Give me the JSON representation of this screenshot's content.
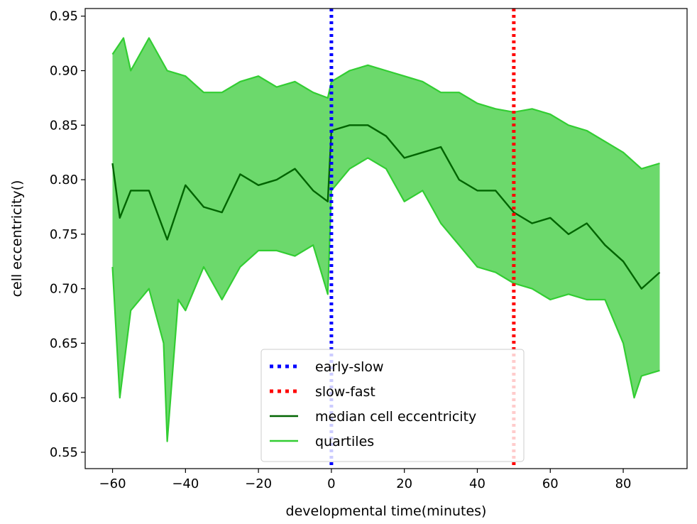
{
  "chart_data": {
    "type": "line",
    "title": "",
    "xlabel": "developmental time(minutes)",
    "ylabel": "cell eccentricity()",
    "xlim": [
      -67.5,
      97.5
    ],
    "ylim": [
      0.535,
      0.957
    ],
    "x_ticks": [
      -60,
      -40,
      -20,
      0,
      20,
      40,
      60,
      80
    ],
    "x_tick_labels": [
      "−60",
      "−40",
      "−20",
      "0",
      "20",
      "40",
      "60",
      "80"
    ],
    "y_ticks": [
      0.55,
      0.6,
      0.65,
      0.7,
      0.75,
      0.8,
      0.85,
      0.9,
      0.95
    ],
    "y_tick_labels": [
      "0.55",
      "0.60",
      "0.65",
      "0.70",
      "0.75",
      "0.80",
      "0.85",
      "0.90",
      "0.95"
    ],
    "grid": false,
    "legend_position": "bottom-center",
    "vertical_lines": [
      {
        "name": "early-slow",
        "x": 0,
        "color": "#0000ff",
        "style": "dotted"
      },
      {
        "name": "slow-fast",
        "x": 50,
        "color": "#ff0000",
        "style": "dotted"
      }
    ],
    "series": [
      {
        "name": "median cell eccentricity",
        "color": "#006400",
        "x": [
          -60,
          -58,
          -55,
          -50,
          -45,
          -40,
          -35,
          -30,
          -25,
          -20,
          -15,
          -10,
          -5,
          -1,
          0,
          5,
          10,
          15,
          20,
          25,
          30,
          35,
          40,
          45,
          50,
          55,
          60,
          65,
          70,
          75,
          80,
          85,
          90
        ],
        "y": [
          0.815,
          0.765,
          0.79,
          0.79,
          0.745,
          0.795,
          0.775,
          0.77,
          0.805,
          0.795,
          0.8,
          0.81,
          0.79,
          0.78,
          0.845,
          0.85,
          0.85,
          0.84,
          0.82,
          0.825,
          0.83,
          0.8,
          0.79,
          0.79,
          0.77,
          0.76,
          0.765,
          0.75,
          0.76,
          0.74,
          0.725,
          0.7,
          0.715
        ]
      },
      {
        "name": "quartiles",
        "role": "upper",
        "color": "#32cd32",
        "x": [
          -60,
          -57,
          -55,
          -50,
          -45,
          -40,
          -35,
          -30,
          -25,
          -20,
          -15,
          -10,
          -5,
          -1,
          0,
          5,
          10,
          15,
          20,
          25,
          30,
          35,
          40,
          45,
          50,
          55,
          60,
          65,
          70,
          75,
          80,
          85,
          90
        ],
        "y": [
          0.915,
          0.93,
          0.9,
          0.93,
          0.9,
          0.895,
          0.88,
          0.88,
          0.89,
          0.895,
          0.885,
          0.89,
          0.88,
          0.875,
          0.89,
          0.9,
          0.905,
          0.9,
          0.895,
          0.89,
          0.88,
          0.88,
          0.87,
          0.865,
          0.862,
          0.865,
          0.86,
          0.85,
          0.845,
          0.835,
          0.825,
          0.81,
          0.815
        ]
      },
      {
        "name": "quartiles",
        "role": "lower",
        "color": "#32cd32",
        "x": [
          -60,
          -58,
          -55,
          -50,
          -46,
          -45,
          -42,
          -40,
          -35,
          -30,
          -25,
          -20,
          -15,
          -10,
          -5,
          -1,
          0,
          5,
          10,
          15,
          20,
          25,
          30,
          35,
          40,
          45,
          50,
          55,
          60,
          65,
          70,
          75,
          80,
          83,
          85,
          90
        ],
        "y": [
          0.72,
          0.6,
          0.68,
          0.7,
          0.65,
          0.56,
          0.69,
          0.68,
          0.72,
          0.69,
          0.72,
          0.735,
          0.735,
          0.73,
          0.74,
          0.695,
          0.79,
          0.81,
          0.82,
          0.81,
          0.78,
          0.79,
          0.76,
          0.74,
          0.72,
          0.715,
          0.705,
          0.7,
          0.69,
          0.695,
          0.69,
          0.69,
          0.65,
          0.6,
          0.62,
          0.625
        ]
      }
    ],
    "legend": [
      {
        "label": "early-slow",
        "color": "#0000ff",
        "style": "dotted"
      },
      {
        "label": "slow-fast",
        "color": "#ff0000",
        "style": "dotted"
      },
      {
        "label": "median cell eccentricity",
        "color": "#006400",
        "style": "solid"
      },
      {
        "label": "quartiles",
        "color": "#32cd32",
        "style": "solid"
      }
    ]
  }
}
